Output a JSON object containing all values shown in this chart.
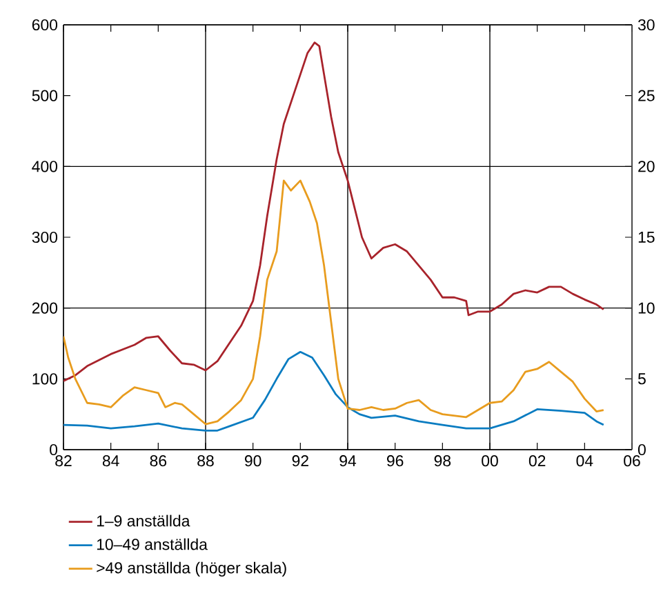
{
  "chart_data": {
    "type": "line",
    "x": [
      1982.0,
      1982.5,
      1983,
      1984,
      1985,
      1985.5,
      1986,
      1986.5,
      1987,
      1987.5,
      1988,
      1988.5,
      1989,
      1989.5,
      1990,
      1990.3,
      1990.6,
      1991,
      1991.3,
      1991.7,
      1992,
      1992.3,
      1992.6,
      1992.8,
      1993,
      1993.3,
      1993.6,
      1994,
      1994.3,
      1994.6,
      1995,
      1995.5,
      1996,
      1996.5,
      1997,
      1997.5,
      1998,
      1998.5,
      1999,
      1999.1,
      1999.5,
      2000,
      2000.5,
      2001,
      2001.5,
      2002,
      2002.5,
      2003,
      2003.5,
      2004,
      2004.5,
      2004.8
    ],
    "series": [
      {
        "name": "1–9 anställda",
        "color": "#a8232b",
        "values": [
          97,
          105,
          118,
          135,
          148,
          158,
          160,
          140,
          122,
          120,
          112,
          125,
          150,
          175,
          210,
          260,
          330,
          410,
          460,
          500,
          530,
          560,
          575,
          570,
          530,
          470,
          420,
          380,
          340,
          300,
          270,
          285,
          290,
          280,
          260,
          240,
          215,
          215,
          210,
          190,
          195,
          195,
          205,
          220,
          225,
          222,
          230,
          230,
          220,
          212,
          205,
          198
        ]
      },
      {
        "name": "10–49 anställda",
        "color": "#0a7cc1",
        "x": [
          1982,
          1983,
          1984,
          1985,
          1986,
          1987,
          1988,
          1988.5,
          1989,
          1990,
          1990.5,
          1991,
          1991.5,
          1992,
          1992.5,
          1993,
          1993.5,
          1994,
          1994.5,
          1995,
          1996,
          1997,
          1998,
          1999,
          2000,
          2001,
          2002,
          2003,
          2004,
          2004.5,
          2004.8
        ],
        "values": [
          35,
          34,
          30,
          33,
          37,
          30,
          27,
          27,
          33,
          45,
          70,
          100,
          128,
          138,
          130,
          105,
          78,
          60,
          50,
          45,
          48,
          40,
          35,
          30,
          30,
          40,
          57,
          55,
          52,
          40,
          35
        ]
      },
      {
        "name": ">49 anställda (höger skala)",
        "color": "#e89c1e",
        "axis": "y2",
        "x": [
          1982.0,
          1982.2,
          1982.5,
          1983,
          1983.5,
          1984,
          1984.5,
          1985,
          1985.5,
          1986,
          1986.3,
          1986.7,
          1987,
          1987.5,
          1988,
          1988.5,
          1989,
          1989.5,
          1990,
          1990.3,
          1990.6,
          1991,
          1991.3,
          1991.6,
          1992,
          1992.4,
          1992.7,
          1993,
          1993.3,
          1993.6,
          1994,
          1994.5,
          1995,
          1995.5,
          1996,
          1996.5,
          1997,
          1997.5,
          1998,
          1998.5,
          1999,
          1999.5,
          2000,
          2000.5,
          2001,
          2001.5,
          2002,
          2002.5,
          2003,
          2003.5,
          2004,
          2004.5,
          2004.8
        ],
        "values": [
          8,
          6.5,
          5,
          3.3,
          3.2,
          3,
          3.8,
          4.4,
          4.2,
          4,
          3,
          3.3,
          3.2,
          2.5,
          1.8,
          2,
          2.7,
          3.5,
          5,
          8,
          12,
          14,
          19,
          18.3,
          19,
          17.5,
          16,
          13,
          9,
          5,
          2.9,
          2.8,
          3,
          2.8,
          2.9,
          3.3,
          3.5,
          2.8,
          2.5,
          2.4,
          2.3,
          2.8,
          3.3,
          3.4,
          4.2,
          5.5,
          5.7,
          6.2,
          5.5,
          4.8,
          3.6,
          2.7,
          2.8
        ]
      }
    ],
    "xlim": [
      1982,
      2006
    ],
    "xticks": [
      {
        "value": 1982,
        "label": "82"
      },
      {
        "value": 1984,
        "label": "84"
      },
      {
        "value": 1986,
        "label": "86"
      },
      {
        "value": 1988,
        "label": "88"
      },
      {
        "value": 1990,
        "label": "90"
      },
      {
        "value": 1992,
        "label": "92"
      },
      {
        "value": 1994,
        "label": "94"
      },
      {
        "value": 1996,
        "label": "96"
      },
      {
        "value": 1998,
        "label": "98"
      },
      {
        "value": 2000,
        "label": "00"
      },
      {
        "value": 2002,
        "label": "02"
      },
      {
        "value": 2004,
        "label": "04"
      },
      {
        "value": 2006,
        "label": "06"
      }
    ],
    "ylim": [
      0,
      600
    ],
    "yticks": [
      0,
      100,
      200,
      300,
      400,
      500,
      600
    ],
    "y2lim": [
      0,
      30
    ],
    "y2ticks": [
      0,
      5,
      10,
      15,
      20,
      25,
      30
    ],
    "grid": true,
    "legend": "bottom",
    "marker": "none",
    "line_style": "solid"
  }
}
